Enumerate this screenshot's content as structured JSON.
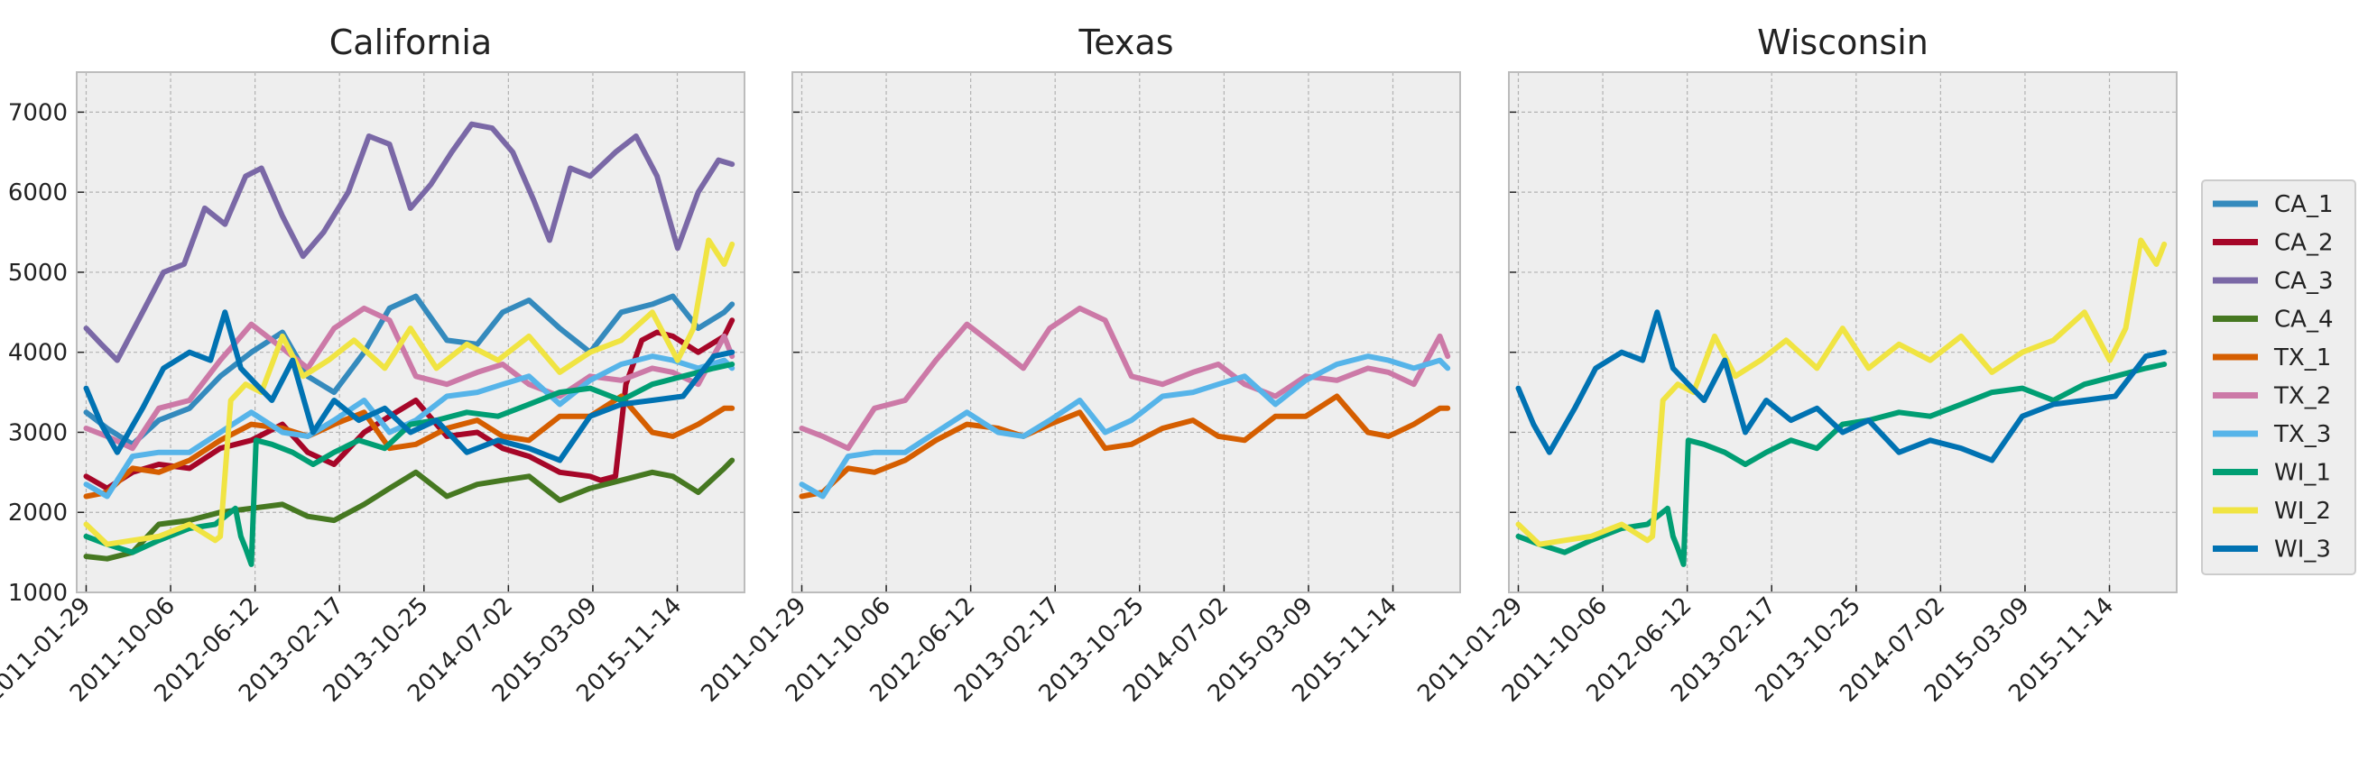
{
  "legend": {
    "placement": "right",
    "entries": [
      {
        "name": "CA_1",
        "color": "#348ABD"
      },
      {
        "name": "CA_2",
        "color": "#A60628"
      },
      {
        "name": "CA_3",
        "color": "#7A68A6"
      },
      {
        "name": "CA_4",
        "color": "#467821"
      },
      {
        "name": "TX_1",
        "color": "#D55E00"
      },
      {
        "name": "TX_2",
        "color": "#CC79A7"
      },
      {
        "name": "TX_3",
        "color": "#56B4E9"
      },
      {
        "name": "WI_1",
        "color": "#009E73"
      },
      {
        "name": "WI_2",
        "color": "#F0E442"
      },
      {
        "name": "WI_3",
        "color": "#0072B2"
      }
    ]
  },
  "style": {
    "axes_background": "#EEEEEE",
    "grid": true,
    "grid_color": "#B2B2B2",
    "shared_y": true
  },
  "chart_data": [
    {
      "type": "line",
      "title": "California",
      "xlabel": "",
      "ylabel": "",
      "ylim": [
        1000,
        7500
      ],
      "xlim": [
        "2011-01-01",
        "2016-05-31"
      ],
      "xticks": [
        "2011-01-29",
        "2011-10-06",
        "2012-06-12",
        "2013-02-17",
        "2013-10-25",
        "2014-07-02",
        "2015-03-09",
        "2015-11-14"
      ],
      "yticks": [
        1000,
        2000,
        3000,
        4000,
        5000,
        6000,
        7000
      ],
      "series": [
        {
          "name": "CA_1",
          "color": "#348ABD",
          "x": [
            "2011-01-29",
            "2011-04-01",
            "2011-06-15",
            "2011-09-01",
            "2011-12-01",
            "2012-03-01",
            "2012-06-01",
            "2012-09-01",
            "2012-11-15",
            "2013-02-01",
            "2013-05-01",
            "2013-07-15",
            "2013-10-01",
            "2014-01-01",
            "2014-04-01",
            "2014-06-15",
            "2014-09-01",
            "2014-12-01",
            "2015-03-01",
            "2015-06-01",
            "2015-09-01",
            "2015-11-01",
            "2016-01-15",
            "2016-04-01",
            "2016-04-24"
          ],
          "y": [
            3250,
            3050,
            2850,
            3150,
            3300,
            3700,
            4000,
            4250,
            3700,
            3500,
            4000,
            4550,
            4700,
            4150,
            4100,
            4500,
            4650,
            4300,
            4000,
            4500,
            4600,
            4700,
            4300,
            4500,
            4600
          ]
        },
        {
          "name": "CA_2",
          "color": "#A60628",
          "x": [
            "2011-01-29",
            "2011-04-01",
            "2011-06-15",
            "2011-09-01",
            "2011-12-01",
            "2012-03-01",
            "2012-06-01",
            "2012-09-01",
            "2012-11-15",
            "2013-02-01",
            "2013-05-01",
            "2013-07-15",
            "2013-10-01",
            "2014-01-01",
            "2014-04-01",
            "2014-06-15",
            "2014-09-01",
            "2014-12-01",
            "2015-03-01",
            "2015-04-01",
            "2015-05-15",
            "2015-06-15",
            "2015-08-01",
            "2015-09-15",
            "2015-11-01",
            "2016-01-15",
            "2016-04-01",
            "2016-04-24"
          ],
          "y": [
            2450,
            2300,
            2500,
            2600,
            2550,
            2800,
            2900,
            3100,
            2750,
            2600,
            3000,
            3200,
            3400,
            2950,
            3000,
            2800,
            2700,
            2500,
            2450,
            2400,
            2450,
            3600,
            4150,
            4250,
            4200,
            4000,
            4200,
            4400
          ]
        },
        {
          "name": "CA_3",
          "color": "#7A68A6",
          "x": [
            "2011-01-29",
            "2011-03-15",
            "2011-05-01",
            "2011-07-15",
            "2011-09-15",
            "2011-11-15",
            "2012-01-15",
            "2012-03-15",
            "2012-05-15",
            "2012-07-01",
            "2012-09-01",
            "2012-11-01",
            "2013-01-01",
            "2013-03-15",
            "2013-05-15",
            "2013-07-15",
            "2013-09-15",
            "2013-11-15",
            "2014-01-15",
            "2014-03-15",
            "2014-05-15",
            "2014-07-15",
            "2014-09-15",
            "2014-11-01",
            "2015-01-01",
            "2015-03-01",
            "2015-05-15",
            "2015-07-15",
            "2015-09-15",
            "2015-11-15",
            "2016-01-15",
            "2016-03-15",
            "2016-04-24"
          ],
          "y": [
            4300,
            4100,
            3900,
            4500,
            5000,
            5100,
            5800,
            5600,
            6200,
            6300,
            5700,
            5200,
            5500,
            6000,
            6700,
            6600,
            5800,
            6100,
            6500,
            6850,
            6800,
            6500,
            5900,
            5400,
            6300,
            6200,
            6500,
            6700,
            6200,
            5300,
            6000,
            6400,
            6350
          ]
        },
        {
          "name": "CA_4",
          "color": "#467821",
          "x": [
            "2011-01-29",
            "2011-04-01",
            "2011-06-15",
            "2011-09-01",
            "2011-12-01",
            "2012-03-01",
            "2012-06-01",
            "2012-09-01",
            "2012-11-15",
            "2013-02-01",
            "2013-05-01",
            "2013-07-15",
            "2013-10-01",
            "2014-01-01",
            "2014-04-01",
            "2014-06-15",
            "2014-09-01",
            "2014-12-01",
            "2015-03-01",
            "2015-06-01",
            "2015-09-01",
            "2015-11-01",
            "2016-01-15",
            "2016-04-01",
            "2016-04-24"
          ],
          "y": [
            1450,
            1420,
            1500,
            1850,
            1900,
            2000,
            2050,
            2100,
            1950,
            1900,
            2100,
            2300,
            2500,
            2200,
            2350,
            2400,
            2450,
            2150,
            2300,
            2400,
            2500,
            2450,
            2250,
            2550,
            2650
          ]
        },
        {
          "name": "TX_1",
          "color": "#D55E00",
          "x": [
            "2011-01-29",
            "2011-04-01",
            "2011-06-15",
            "2011-09-01",
            "2011-12-01",
            "2012-03-01",
            "2012-06-01",
            "2012-09-01",
            "2012-11-15",
            "2013-02-01",
            "2013-05-01",
            "2013-07-15",
            "2013-10-01",
            "2014-01-01",
            "2014-04-01",
            "2014-06-15",
            "2014-09-01",
            "2014-12-01",
            "2015-03-01",
            "2015-06-01",
            "2015-09-01",
            "2015-11-01",
            "2016-01-15",
            "2016-04-01",
            "2016-04-24"
          ],
          "y": [
            2200,
            2250,
            2550,
            2500,
            2650,
            2900,
            3100,
            3050,
            2950,
            3100,
            3250,
            2800,
            2850,
            3050,
            3150,
            2950,
            2900,
            3200,
            3200,
            3450,
            3000,
            2950,
            3100,
            3300,
            3300
          ]
        },
        {
          "name": "TX_2",
          "color": "#CC79A7",
          "x": [
            "2011-01-29",
            "2011-04-01",
            "2011-06-15",
            "2011-09-01",
            "2011-12-01",
            "2012-03-01",
            "2012-06-01",
            "2012-09-01",
            "2012-11-15",
            "2013-02-01",
            "2013-05-01",
            "2013-07-15",
            "2013-10-01",
            "2014-01-01",
            "2014-04-01",
            "2014-06-15",
            "2014-09-01",
            "2014-12-01",
            "2015-03-01",
            "2015-06-01",
            "2015-09-01",
            "2015-11-01",
            "2016-01-15",
            "2016-04-01",
            "2016-04-24"
          ],
          "y": [
            3050,
            2950,
            2800,
            3300,
            3400,
            3900,
            4350,
            4050,
            3800,
            4300,
            4550,
            4400,
            3700,
            3600,
            3750,
            3850,
            3600,
            3450,
            3700,
            3650,
            3800,
            3750,
            3600,
            4200,
            3950
          ]
        },
        {
          "name": "TX_3",
          "color": "#56B4E9",
          "x": [
            "2011-01-29",
            "2011-04-01",
            "2011-06-15",
            "2011-09-01",
            "2011-12-01",
            "2012-03-01",
            "2012-06-01",
            "2012-09-01",
            "2012-11-15",
            "2013-02-01",
            "2013-05-01",
            "2013-07-15",
            "2013-10-01",
            "2014-01-01",
            "2014-04-01",
            "2014-06-15",
            "2014-09-01",
            "2014-12-01",
            "2015-03-01",
            "2015-06-01",
            "2015-09-01",
            "2015-11-01",
            "2016-01-15",
            "2016-04-01",
            "2016-04-24"
          ],
          "y": [
            2350,
            2200,
            2700,
            2750,
            2750,
            3000,
            3250,
            3000,
            2950,
            3150,
            3400,
            3000,
            3150,
            3450,
            3500,
            3600,
            3700,
            3350,
            3650,
            3850,
            3950,
            3900,
            3800,
            3900,
            3800
          ]
        },
        {
          "name": "WI_1",
          "color": "#009E73",
          "x": [
            "2011-01-29",
            "2011-04-01",
            "2011-06-15",
            "2011-09-01",
            "2011-12-01",
            "2012-02-15",
            "2012-04-15",
            "2012-05-01",
            "2012-05-15",
            "2012-06-01",
            "2012-06-15",
            "2012-08-01",
            "2012-10-01",
            "2012-12-01",
            "2013-02-01",
            "2013-04-15",
            "2013-07-01",
            "2013-09-15",
            "2013-12-01",
            "2014-03-01",
            "2014-06-01",
            "2014-09-01",
            "2014-12-01",
            "2015-03-01",
            "2015-06-01",
            "2015-09-01",
            "2015-12-01",
            "2016-03-01",
            "2016-04-24"
          ],
          "y": [
            1700,
            1600,
            1500,
            1650,
            1800,
            1850,
            2050,
            1700,
            1550,
            1350,
            2900,
            2850,
            2750,
            2600,
            2750,
            2900,
            2800,
            3100,
            3150,
            3250,
            3200,
            3350,
            3500,
            3550,
            3400,
            3600,
            3700,
            3800,
            3850
          ]
        },
        {
          "name": "WI_2",
          "color": "#F0E442",
          "x": [
            "2011-01-29",
            "2011-04-01",
            "2011-06-15",
            "2011-09-01",
            "2011-12-01",
            "2012-02-15",
            "2012-03-01",
            "2012-04-01",
            "2012-05-15",
            "2012-07-01",
            "2012-09-01",
            "2012-11-01",
            "2013-01-15",
            "2013-04-01",
            "2013-07-01",
            "2013-09-15",
            "2013-12-01",
            "2014-03-01",
            "2014-06-01",
            "2014-09-01",
            "2014-12-01",
            "2015-03-01",
            "2015-06-01",
            "2015-09-01",
            "2015-11-15",
            "2016-01-01",
            "2016-02-15",
            "2016-04-01",
            "2016-04-24"
          ],
          "y": [
            1850,
            1600,
            1650,
            1700,
            1850,
            1650,
            1700,
            3400,
            3600,
            3500,
            4200,
            3700,
            3900,
            4150,
            3800,
            4300,
            3800,
            4100,
            3900,
            4200,
            3750,
            4000,
            4150,
            4500,
            3900,
            4300,
            5400,
            5100,
            5350
          ]
        },
        {
          "name": "WI_3",
          "color": "#0072B2",
          "x": [
            "2011-01-29",
            "2011-03-15",
            "2011-05-01",
            "2011-07-15",
            "2011-09-15",
            "2011-12-01",
            "2012-02-01",
            "2012-03-15",
            "2012-05-01",
            "2012-06-15",
            "2012-08-01",
            "2012-10-01",
            "2012-12-01",
            "2013-02-01",
            "2013-04-15",
            "2013-07-01",
            "2013-09-15",
            "2013-12-01",
            "2014-03-01",
            "2014-06-01",
            "2014-09-01",
            "2014-12-01",
            "2015-03-01",
            "2015-06-01",
            "2015-09-01",
            "2015-12-01",
            "2016-03-01",
            "2016-04-24"
          ],
          "y": [
            3550,
            3100,
            2750,
            3300,
            3800,
            4000,
            3900,
            4500,
            3800,
            3600,
            3400,
            3900,
            3000,
            3400,
            3150,
            3300,
            3000,
            3150,
            2750,
            2900,
            2800,
            2650,
            3200,
            3350,
            3400,
            3450,
            3950,
            4000
          ]
        }
      ]
    },
    {
      "type": "line",
      "title": "Texas",
      "xlabel": "",
      "ylabel": "",
      "ylim": [
        1000,
        7500
      ],
      "xlim": [
        "2011-01-01",
        "2016-05-31"
      ],
      "xticks": [
        "2011-01-29",
        "2011-10-06",
        "2012-06-12",
        "2013-02-17",
        "2013-10-25",
        "2014-07-02",
        "2015-03-09",
        "2015-11-14"
      ],
      "series_ref": [
        "TX_1",
        "TX_2",
        "TX_3"
      ]
    },
    {
      "type": "line",
      "title": "Wisconsin",
      "xlabel": "",
      "ylabel": "",
      "ylim": [
        1000,
        7500
      ],
      "xlim": [
        "2011-01-01",
        "2016-05-31"
      ],
      "xticks": [
        "2011-01-29",
        "2011-10-06",
        "2012-06-12",
        "2013-02-17",
        "2013-10-25",
        "2014-07-02",
        "2015-03-09",
        "2015-11-14"
      ],
      "series_ref": [
        "WI_1",
        "WI_2",
        "WI_3"
      ]
    }
  ]
}
